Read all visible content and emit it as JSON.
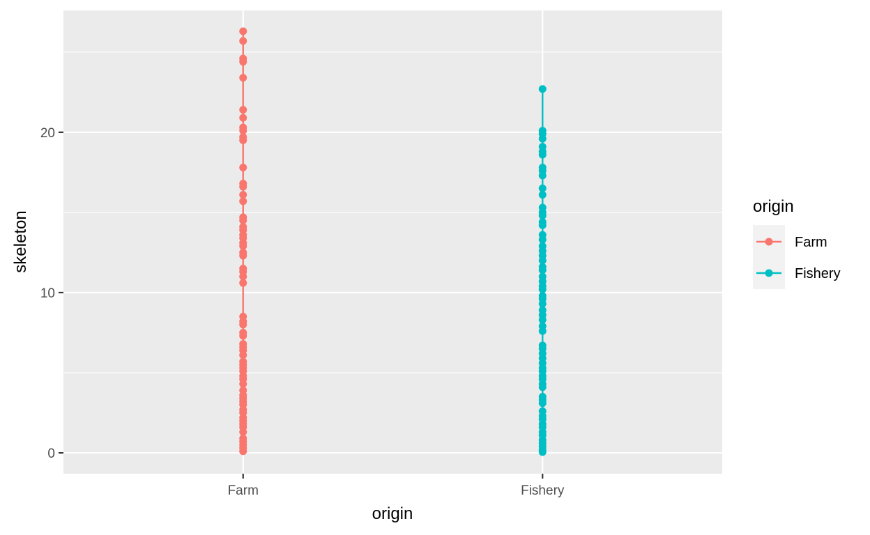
{
  "chart_data": {
    "type": "scatter",
    "xlabel": "origin",
    "ylabel": "skeleton",
    "categories": [
      "Farm",
      "Fishery"
    ],
    "ylim": [
      -1.3,
      27.6
    ],
    "y_ticks": [
      0,
      10,
      20
    ],
    "grid": true,
    "legend": {
      "title": "origin",
      "placement": "right"
    },
    "series": [
      {
        "name": "Farm",
        "color": "#F8766D",
        "x": "Farm",
        "values": [
          0.1,
          0.3,
          0.5,
          0.7,
          0.9,
          1.3,
          1.6,
          1.8,
          2.0,
          2.2,
          2.5,
          2.7,
          3.0,
          3.2,
          3.4,
          3.6,
          3.9,
          4.3,
          4.6,
          4.8,
          5.1,
          5.3,
          5.5,
          5.7,
          6.1,
          6.4,
          6.6,
          6.8,
          7.3,
          7.5,
          8.0,
          8.2,
          8.5,
          10.6,
          11.0,
          11.3,
          11.5,
          12.3,
          12.5,
          12.9,
          13.1,
          13.4,
          13.6,
          13.9,
          14.1,
          14.5,
          14.7,
          15.7,
          16.1,
          16.6,
          16.8,
          17.8,
          19.5,
          19.7,
          20.1,
          20.3,
          20.9,
          21.4,
          23.4,
          24.4,
          24.6,
          25.7,
          26.3
        ]
      },
      {
        "name": "Fishery",
        "color": "#00BFC4",
        "x": "Fishery",
        "values": [
          0.05,
          0.2,
          0.4,
          0.6,
          0.8,
          1.1,
          1.3,
          1.6,
          1.8,
          2.1,
          2.3,
          2.6,
          3.1,
          3.3,
          3.5,
          4.1,
          4.3,
          4.6,
          4.8,
          5.1,
          5.3,
          5.6,
          5.9,
          6.2,
          6.5,
          6.7,
          7.6,
          7.9,
          8.3,
          8.6,
          8.9,
          9.3,
          9.6,
          9.8,
          10.2,
          10.4,
          10.7,
          11.0,
          11.4,
          11.6,
          12.0,
          12.3,
          12.6,
          12.9,
          13.3,
          13.6,
          14.2,
          14.4,
          14.8,
          15.0,
          15.3,
          16.1,
          16.5,
          17.3,
          17.6,
          17.8,
          18.6,
          18.8,
          19.1,
          19.6,
          19.9,
          20.1,
          22.7
        ]
      }
    ]
  }
}
